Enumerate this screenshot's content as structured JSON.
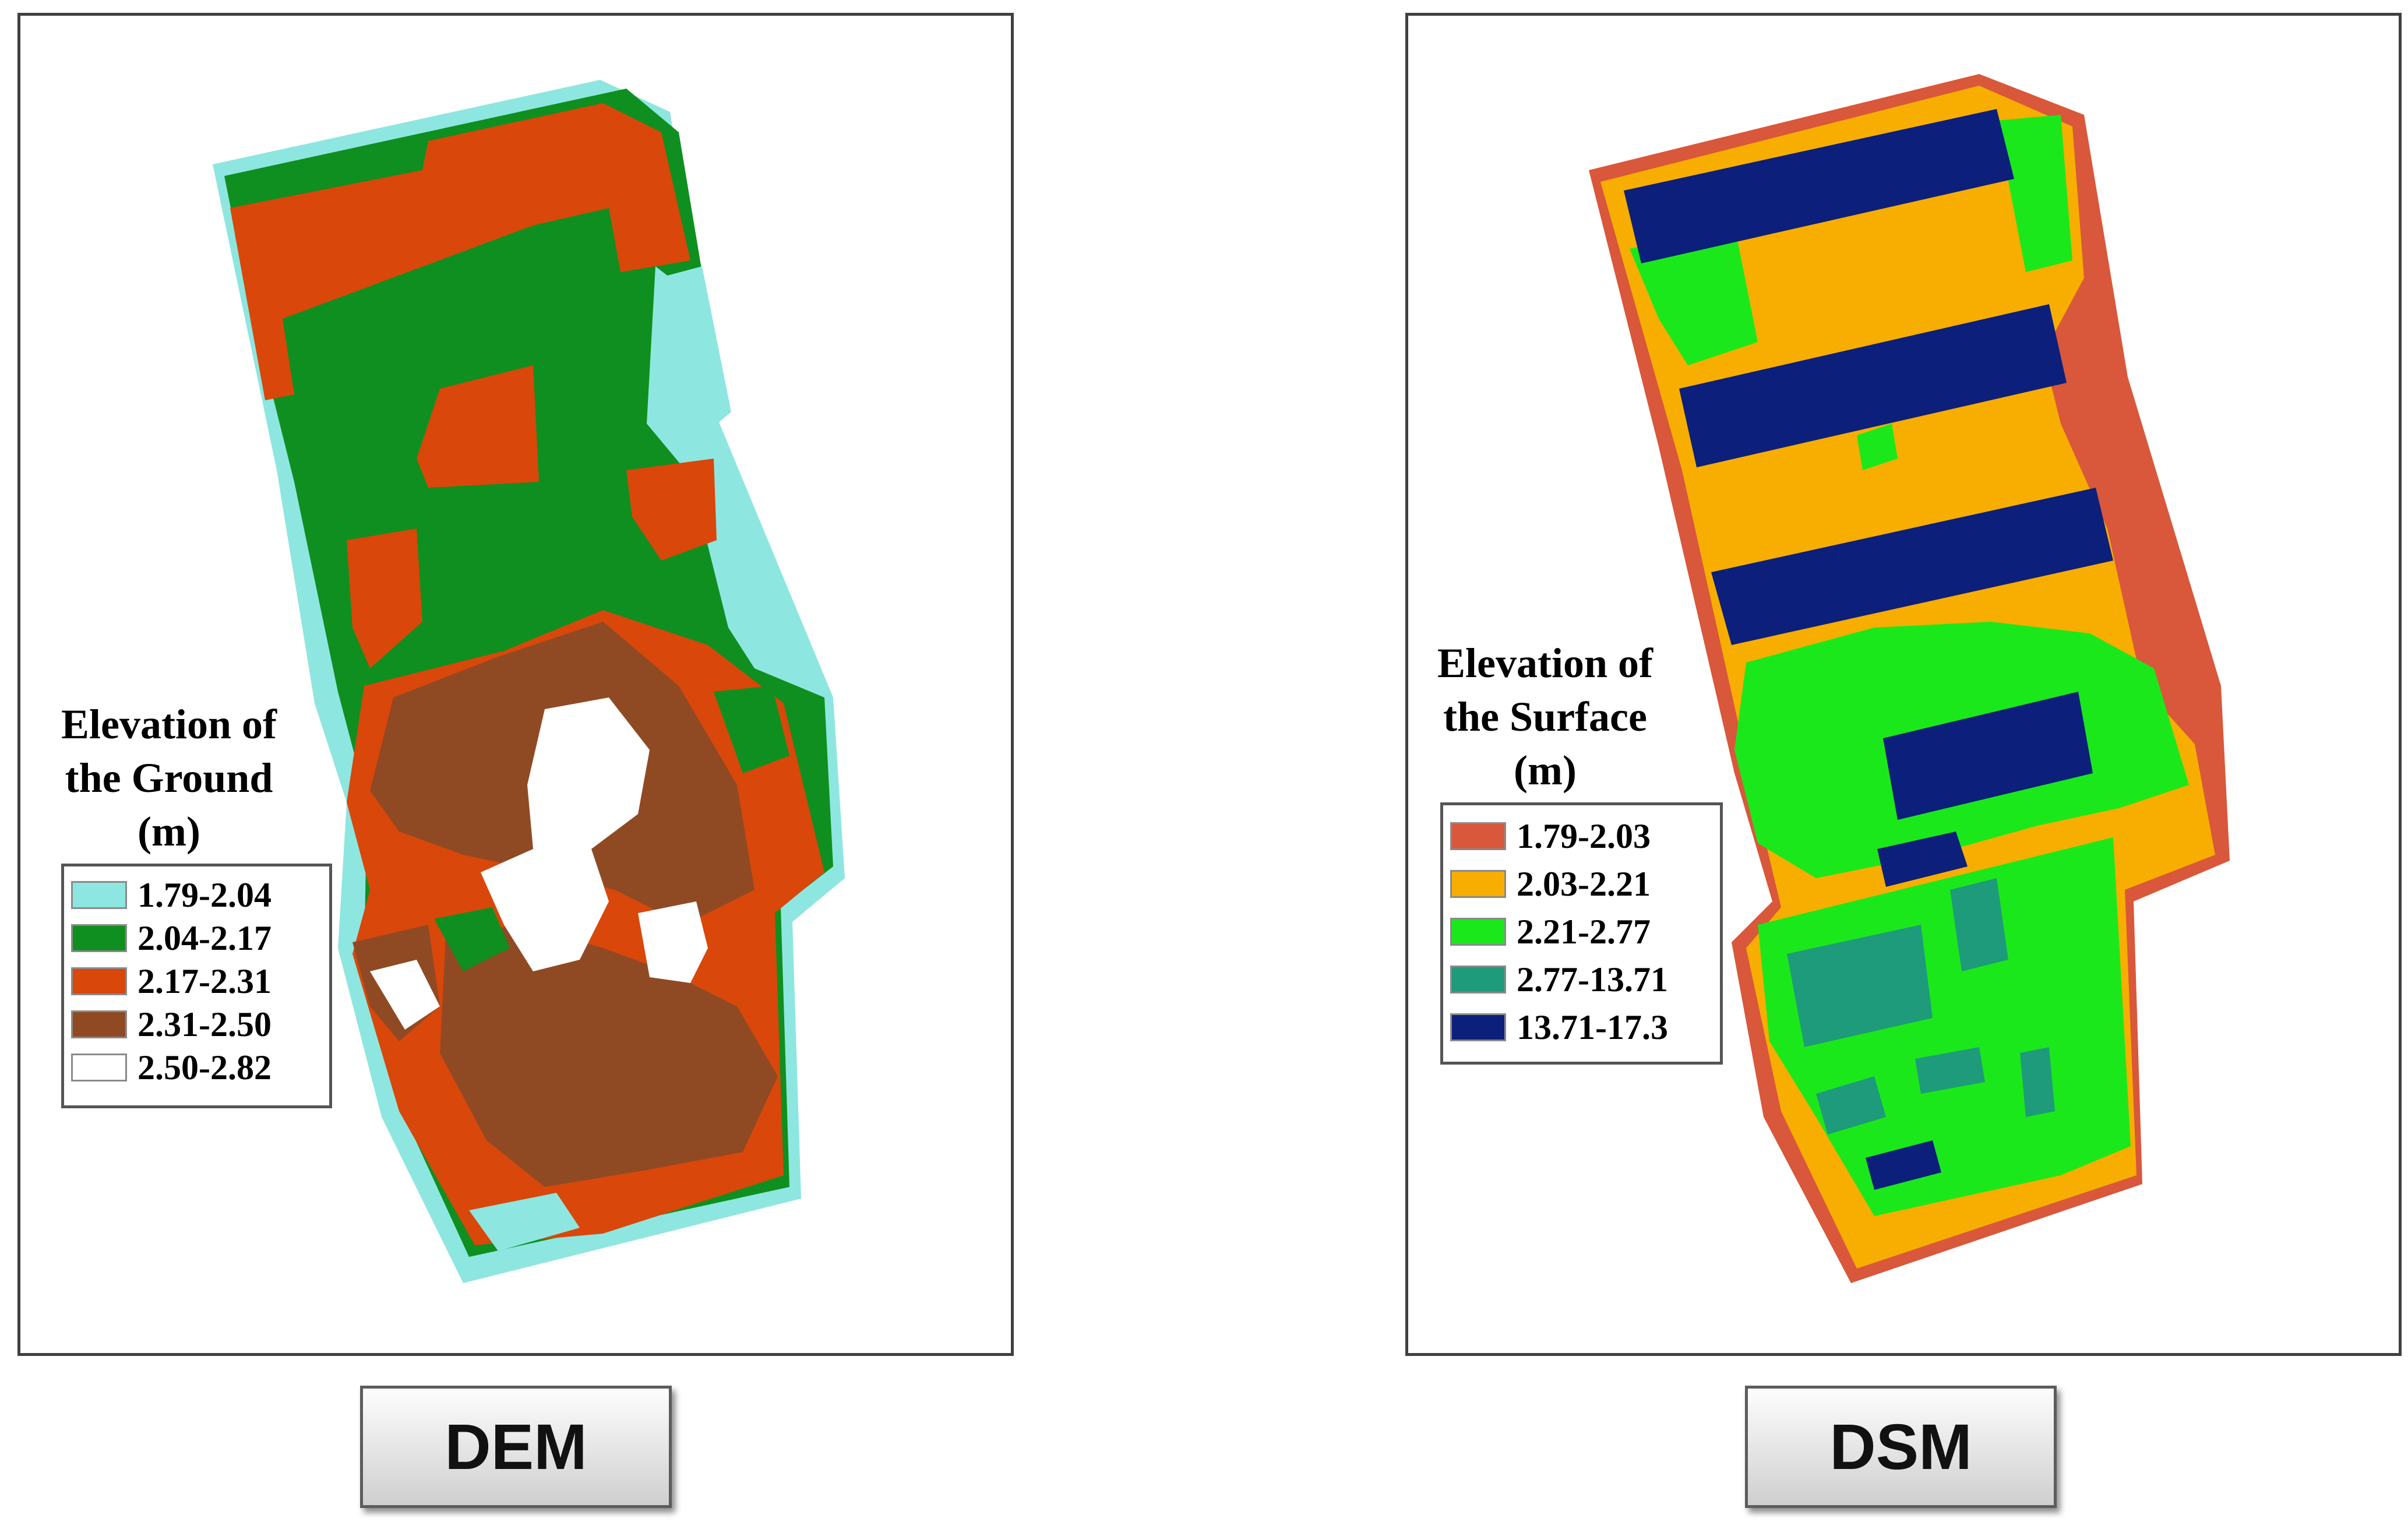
{
  "panels": {
    "dem": {
      "legend_title_line1": "Elevation of",
      "legend_title_line2": "the Ground",
      "legend_title_line3": "(m)",
      "legend": [
        {
          "label": "1.79-2.04",
          "color": "#8ee6e0"
        },
        {
          "label": "2.04-2.17",
          "color": "#0f8f1f"
        },
        {
          "label": "2.17-2.31",
          "color": "#d9470a"
        },
        {
          "label": "2.31-2.50",
          "color": "#8f4a24"
        },
        {
          "label": "2.50-2.82",
          "color": "#ffffff"
        }
      ],
      "button_label": "DEM"
    },
    "dsm": {
      "legend_title_line1": "Elevation of",
      "legend_title_line2": "the Surface",
      "legend_title_line3": "(m)",
      "legend": [
        {
          "label": "1.79-2.03",
          "color": "#d9573a"
        },
        {
          "label": "2.03-2.21",
          "color": "#f7ae00"
        },
        {
          "label": "2.21-2.77",
          "color": "#1be81b"
        },
        {
          "label": "2.77-13.71",
          "color": "#1e9b7a"
        },
        {
          "label": "13.71-17.3",
          "color": "#0c1f7a"
        }
      ],
      "button_label": "DSM"
    }
  }
}
